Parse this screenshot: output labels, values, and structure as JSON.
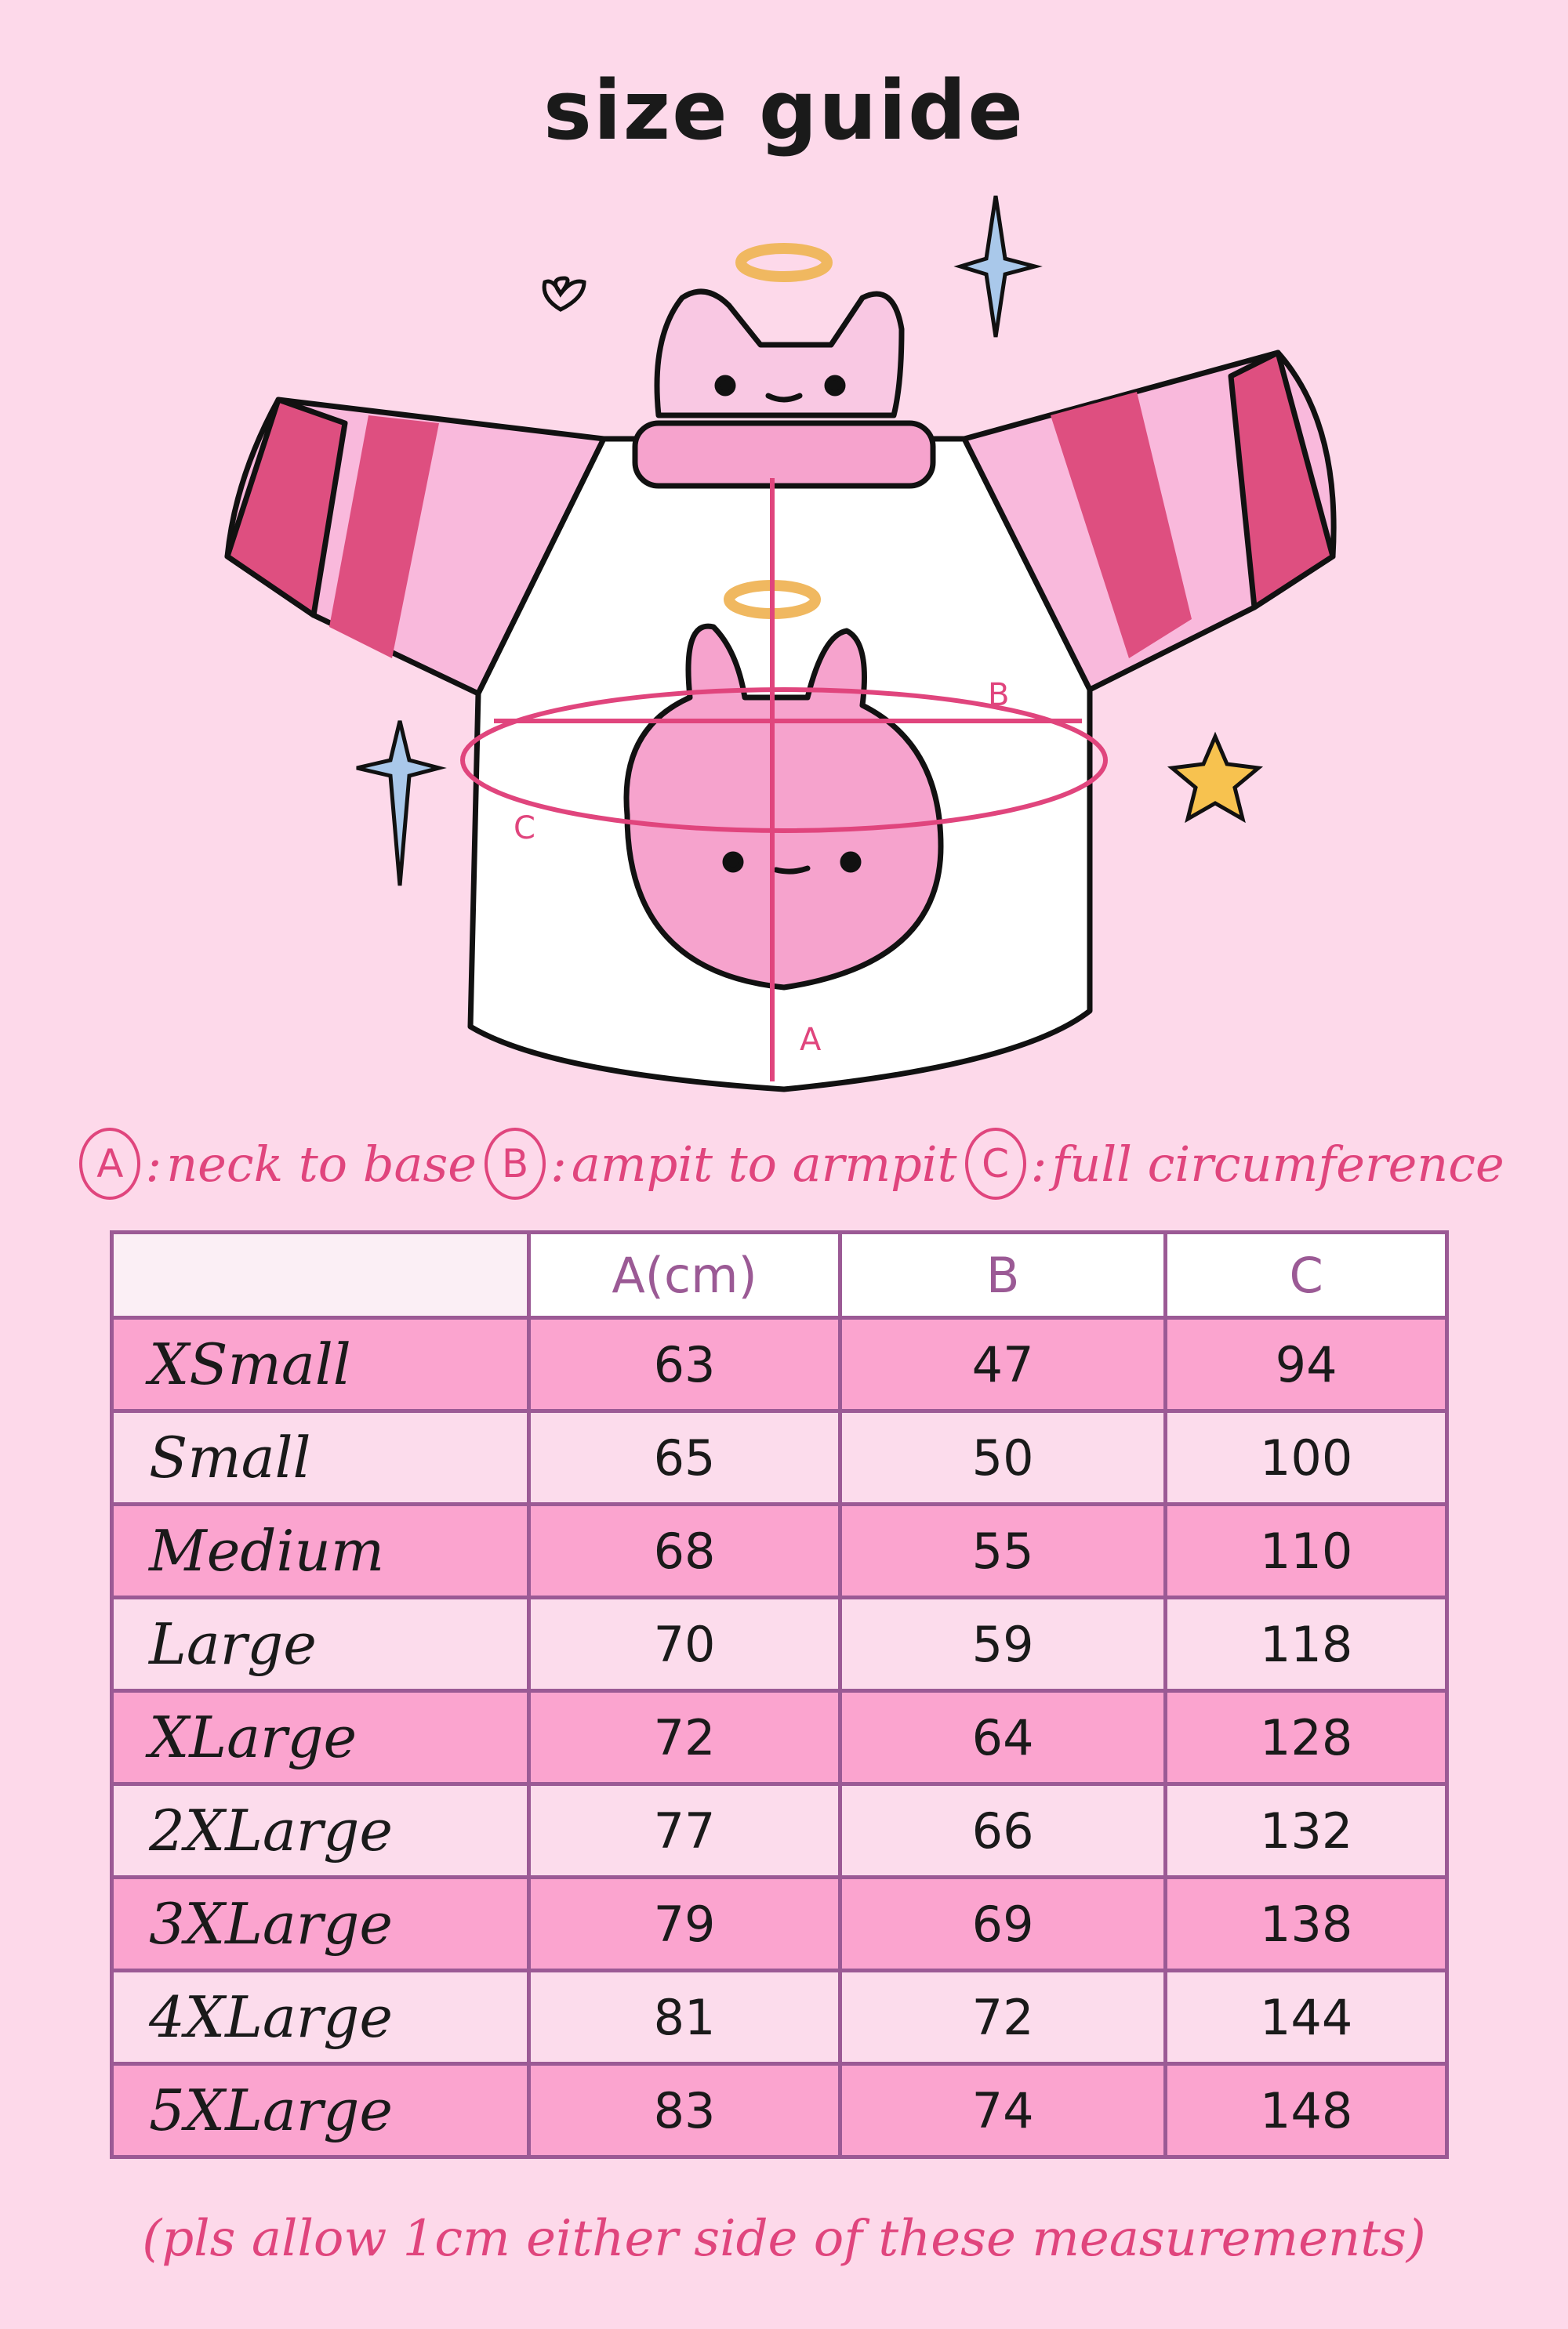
{
  "title": "size guide",
  "colors": {
    "background": "#fdd9ea",
    "accent": "#e0457d",
    "row_dark": "#fba4cf",
    "row_light": "#fcdcec",
    "grid": "#9b5a95"
  },
  "illustration": {
    "labels": [
      "A",
      "B",
      "C"
    ]
  },
  "legend": [
    {
      "key": "A",
      "text": "neck to base"
    },
    {
      "key": "B",
      "text": "ampit to armpit"
    },
    {
      "key": "C",
      "text": "full circumference"
    }
  ],
  "table": {
    "headers": [
      "",
      "A(cm)",
      "B",
      "C"
    ],
    "rows": [
      [
        "XSmall",
        "63",
        "47",
        "94"
      ],
      [
        "Small",
        "65",
        "50",
        "100"
      ],
      [
        "Medium",
        "68",
        "55",
        "110"
      ],
      [
        "Large",
        "70",
        "59",
        "118"
      ],
      [
        "XLarge",
        "72",
        "64",
        "128"
      ],
      [
        "2XLarge",
        "77",
        "66",
        "132"
      ],
      [
        "3XLarge",
        "79",
        "69",
        "138"
      ],
      [
        "4XLarge",
        "81",
        "72",
        "144"
      ],
      [
        "5XLarge",
        "83",
        "74",
        "148"
      ]
    ]
  },
  "note": "(pls allow 1cm either side of these measurements)"
}
